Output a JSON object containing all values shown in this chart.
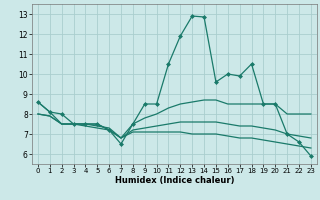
{
  "title": "",
  "xlabel": "Humidex (Indice chaleur)",
  "xlim": [
    -0.5,
    23.5
  ],
  "ylim": [
    5.5,
    13.5
  ],
  "xticks": [
    0,
    1,
    2,
    3,
    4,
    5,
    6,
    7,
    8,
    9,
    10,
    11,
    12,
    13,
    14,
    15,
    16,
    17,
    18,
    19,
    20,
    21,
    22,
    23
  ],
  "yticks": [
    6,
    7,
    8,
    9,
    10,
    11,
    12,
    13
  ],
  "bg_color": "#cce8e8",
  "line_color": "#1a7a6a",
  "grid_color": "#aacece",
  "lines": [
    {
      "x": [
        0,
        1,
        2,
        3,
        4,
        5,
        6,
        7,
        8,
        9,
        10,
        11,
        12,
        13,
        14,
        15,
        16,
        17,
        18,
        19,
        20,
        21,
        22,
        23
      ],
      "y": [
        8.6,
        8.1,
        8.0,
        7.5,
        7.5,
        7.5,
        7.2,
        6.5,
        7.5,
        8.5,
        8.5,
        10.5,
        11.9,
        12.9,
        12.85,
        9.6,
        10.0,
        9.9,
        10.5,
        8.5,
        8.5,
        7.0,
        6.6,
        5.9
      ],
      "marker": true
    },
    {
      "x": [
        0,
        1,
        2,
        3,
        4,
        5,
        6,
        7,
        8,
        9,
        10,
        11,
        12,
        13,
        14,
        15,
        16,
        17,
        18,
        19,
        20,
        21,
        22,
        23
      ],
      "y": [
        8.6,
        8.1,
        7.5,
        7.5,
        7.5,
        7.5,
        7.2,
        6.8,
        7.5,
        7.8,
        8.0,
        8.3,
        8.5,
        8.6,
        8.7,
        8.7,
        8.5,
        8.5,
        8.5,
        8.5,
        8.5,
        8.0,
        8.0,
        8.0
      ],
      "marker": false
    },
    {
      "x": [
        0,
        1,
        2,
        3,
        4,
        5,
        6,
        7,
        8,
        9,
        10,
        11,
        12,
        13,
        14,
        15,
        16,
        17,
        18,
        19,
        20,
        21,
        22,
        23
      ],
      "y": [
        8.0,
        7.9,
        7.5,
        7.5,
        7.5,
        7.4,
        7.3,
        6.8,
        7.2,
        7.3,
        7.4,
        7.5,
        7.6,
        7.6,
        7.6,
        7.6,
        7.5,
        7.4,
        7.4,
        7.3,
        7.2,
        7.0,
        6.9,
        6.8
      ],
      "marker": false
    },
    {
      "x": [
        0,
        1,
        2,
        3,
        4,
        5,
        6,
        7,
        8,
        9,
        10,
        11,
        12,
        13,
        14,
        15,
        16,
        17,
        18,
        19,
        20,
        21,
        22,
        23
      ],
      "y": [
        8.0,
        7.9,
        7.5,
        7.5,
        7.4,
        7.3,
        7.2,
        6.8,
        7.1,
        7.1,
        7.1,
        7.1,
        7.1,
        7.0,
        7.0,
        7.0,
        6.9,
        6.8,
        6.8,
        6.7,
        6.6,
        6.5,
        6.4,
        6.3
      ],
      "marker": false
    }
  ]
}
